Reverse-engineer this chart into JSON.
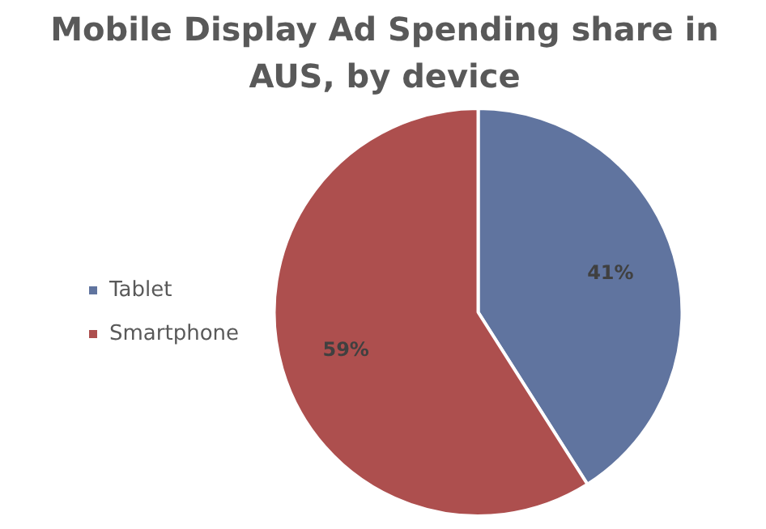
{
  "chart_data": {
    "type": "pie",
    "title": "Mobile Display Ad Spending share in AUS, by device",
    "categories": [
      "Tablet",
      "Smartphone"
    ],
    "values": [
      41,
      59
    ],
    "colors": [
      "#60749f",
      "#ad4f4e"
    ],
    "value_labels": [
      "41%",
      "59%"
    ],
    "legend": "left"
  }
}
